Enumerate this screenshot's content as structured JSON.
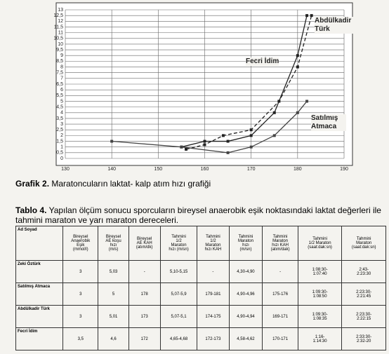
{
  "chart_data": {
    "type": "line",
    "xlim": [
      130,
      190
    ],
    "xticks": [
      130,
      140,
      150,
      160,
      170,
      180,
      190
    ],
    "ylim": [
      0,
      13
    ],
    "yticks": [
      0,
      {
        "value": 0.5,
        "label": "0,5"
      },
      1,
      {
        "value": 1.5,
        "label": "1,5"
      },
      2,
      {
        "value": 2.5,
        "label": "2,5"
      },
      3,
      {
        "value": 3.5,
        "label": "3,5"
      },
      4,
      {
        "value": 4.5,
        "label": "4,5"
      },
      5,
      {
        "value": 5.5,
        "label": "5,5"
      },
      6,
      {
        "value": 6.5,
        "label": "6,5"
      },
      7,
      {
        "value": 7.5,
        "label": "7,5"
      },
      8,
      {
        "value": 8.5,
        "label": "8,5"
      },
      9,
      {
        "value": 9.5,
        "label": "9,5"
      },
      10,
      {
        "value": 10.5,
        "label": "10,5"
      },
      11,
      {
        "value": 11.5,
        "label": "11,5"
      },
      12,
      {
        "value": 12.5,
        "label": "12,5"
      },
      13
    ],
    "grid": true,
    "series": [
      {
        "name": "Abdülkadir Türk",
        "color": "#222222",
        "dashed": false,
        "x": [
          155,
          160,
          165,
          170,
          175,
          180,
          182
        ],
        "values": [
          1,
          1.5,
          1.5,
          2,
          4,
          9,
          12.5
        ]
      },
      {
        "name": "Fecri İdim",
        "color": "#222222",
        "dashed": true,
        "x": [
          156,
          160,
          164,
          170,
          176,
          180,
          183
        ],
        "values": [
          0.8,
          1.2,
          2,
          2.5,
          5,
          8,
          12.5
        ]
      },
      {
        "name": "Satılmış Atmaca",
        "color": "#444444",
        "dashed": false,
        "x": [
          140,
          155,
          165,
          170,
          175,
          180,
          182
        ],
        "values": [
          1.5,
          1,
          0.5,
          1,
          2,
          4,
          5
        ]
      }
    ]
  },
  "caption": {
    "label": "Grafik 2.",
    "text": "Maratoncuların laktat- kalp atım hızı grafiği"
  },
  "table_title": {
    "label": "Tablo 4.",
    "text": "Yapılan ölçüm sonucu sporcuların bireysel anaerobik eşik noktasındaki laktat değerleri ile tahmini maraton ve yarı maraton dereceleri."
  },
  "table": {
    "header": [
      "Ad Soyad",
      "Bireysel\nAnaerobik\nEşik\n(mmol/l)",
      "Bireysel\nAE koşu\nhızı\n(m/s)",
      "Bireysel\nAE KAH\n(atım/dk)",
      "Tahmini\n1/2\nMaraton\nhızı (m/sn)",
      "Tahmini\n1/2\nMaraton\nhızı KAH",
      "Tahmini\nMaraton\nhızı\n(m/sn)",
      "Tahmini\nMaraton\nhızı KAH\n(atım/dak)",
      "Tahmini\n1/2 Maraton\n(saat:dak:sn)",
      "Tahmini\nMaraton\n(saat:dak:sn)"
    ],
    "rows": [
      [
        "Zeki Öztürk",
        "3",
        "5,03",
        "-",
        "5,10-5,15",
        "-",
        "4,30-4,90",
        "-",
        "1:08:30-\n1:07:40",
        "2:43-\n2:23:30"
      ],
      [
        "Satılmış Atmaca",
        "3",
        "5",
        "178",
        "5,07-5,9",
        "179-181",
        "4,90-4,96",
        "175-176",
        "1:09:30-\n1:08:50",
        "2:23:30-\n2:21:45"
      ],
      [
        "Abdülkadir Türk",
        "3",
        "5,01",
        "173",
        "5,07-5,1",
        "174-175",
        "4,90-4,94",
        "169-171",
        "1:09:30-\n1:08:35",
        "2:23:30-\n2:22:15"
      ],
      [
        "Fecri İdim",
        "3,5",
        "4,6",
        "172",
        "4,65-4,68",
        "172-173",
        "4,58-4,62",
        "170-171",
        "1:16-\n1:14:30",
        "2:33:30-\n2:32-20"
      ]
    ]
  }
}
